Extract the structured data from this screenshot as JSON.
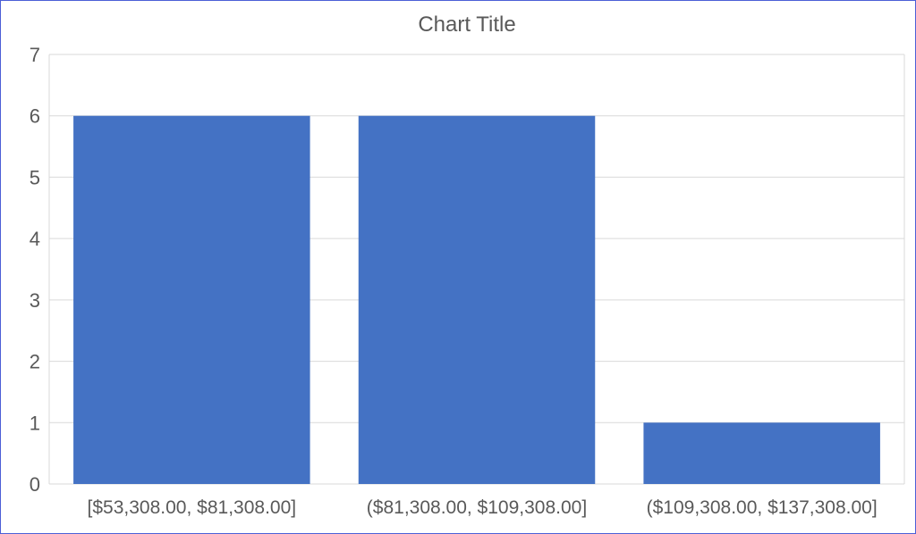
{
  "chart_data": {
    "type": "bar",
    "title": "Chart Title",
    "xlabel": "",
    "ylabel": "",
    "categories": [
      "[$53,308.00, $81,308.00]",
      "($81,308.00, $109,308.00]",
      "($109,308.00, $137,308.00]"
    ],
    "values": [
      6,
      6,
      1
    ],
    "ylim": [
      0,
      7
    ],
    "yticks": [
      "0",
      "1",
      "2",
      "3",
      "4",
      "5",
      "6",
      "7"
    ],
    "grid": true,
    "legend": "none",
    "colors": {
      "bar": "#4472c4",
      "grid": "#d9d9d9",
      "text": "#595959",
      "border": "#4c5fd6"
    }
  }
}
